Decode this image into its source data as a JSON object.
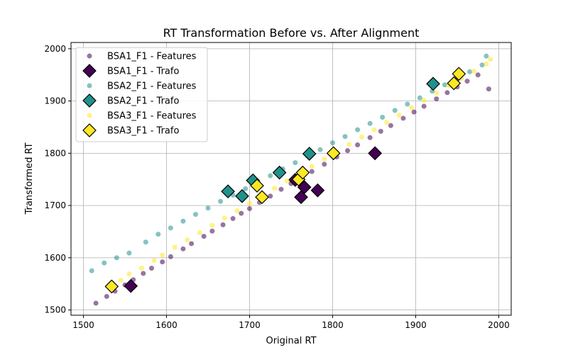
{
  "chart_data": {
    "type": "scatter",
    "title": "RT Transformation Before vs. After Alignment",
    "xlabel": "Original RT",
    "ylabel": "Transformed RT",
    "xlim": [
      1485,
      2015
    ],
    "ylim": [
      1490,
      2012
    ],
    "xticks": [
      1500,
      1600,
      1700,
      1800,
      1900,
      2000
    ],
    "yticks": [
      1500,
      1600,
      1700,
      1800,
      1900,
      2000
    ],
    "grid": true,
    "legend_position": "top-left",
    "colors": {
      "bsa1": "#440154",
      "bsa2": "#21918c",
      "bsa3": "#fde725"
    },
    "series": [
      {
        "key": "bsa1_features",
        "name": "BSA1_F1 - Features",
        "marker": "circle",
        "color": "#440154",
        "x": [
          1515,
          1528,
          1538,
          1550,
          1560,
          1572,
          1582,
          1595,
          1605,
          1620,
          1630,
          1645,
          1655,
          1668,
          1680,
          1690,
          1700,
          1712,
          1725,
          1738,
          1750,
          1762,
          1775,
          1790,
          1805,
          1818,
          1830,
          1845,
          1858,
          1870,
          1885,
          1898,
          1910,
          1925,
          1938,
          1950,
          1962,
          1975,
          1988
        ],
        "y": [
          1513,
          1526,
          1536,
          1548,
          1558,
          1570,
          1580,
          1592,
          1602,
          1617,
          1627,
          1641,
          1651,
          1663,
          1675,
          1685,
          1694,
          1706,
          1718,
          1731,
          1742,
          1753,
          1765,
          1779,
          1793,
          1805,
          1816,
          1830,
          1842,
          1853,
          1867,
          1879,
          1890,
          1904,
          1916,
          1927,
          1938,
          1950,
          1923
        ]
      },
      {
        "key": "bsa1_trafo",
        "name": "BSA1_F1 - Trafo",
        "marker": "diamond",
        "color": "#440154",
        "x": [
          1557,
          1755,
          1762,
          1766,
          1782,
          1851
        ],
        "y": [
          1546,
          1749,
          1716,
          1735,
          1729,
          1800
        ]
      },
      {
        "key": "bsa2_features",
        "name": "BSA2_F1 - Features",
        "marker": "circle",
        "color": "#21918c",
        "x": [
          1510,
          1525,
          1540,
          1555,
          1575,
          1590,
          1605,
          1620,
          1635,
          1650,
          1665,
          1680,
          1695,
          1710,
          1725,
          1740,
          1755,
          1770,
          1785,
          1800,
          1815,
          1830,
          1845,
          1860,
          1875,
          1890,
          1905,
          1920,
          1935,
          1950,
          1965,
          1980,
          1985
        ],
        "y": [
          1575,
          1590,
          1600,
          1609,
          1630,
          1645,
          1657,
          1670,
          1683,
          1695,
          1708,
          1720,
          1732,
          1745,
          1757,
          1770,
          1782,
          1795,
          1807,
          1820,
          1832,
          1845,
          1857,
          1869,
          1882,
          1894,
          1906,
          1919,
          1931,
          1944,
          1956,
          1969,
          1986
        ]
      },
      {
        "key": "bsa2_trafo",
        "name": "BSA2_F1 - Trafo",
        "marker": "diamond",
        "color": "#21918c",
        "x": [
          1674,
          1691,
          1704,
          1736,
          1772,
          1921
        ],
        "y": [
          1727,
          1718,
          1748,
          1763,
          1799,
          1933
        ]
      },
      {
        "key": "bsa3_features",
        "name": "BSA3_F1 - Features",
        "marker": "circle",
        "color": "#fde725",
        "x": [
          1545,
          1555,
          1570,
          1585,
          1595,
          1610,
          1625,
          1640,
          1655,
          1670,
          1685,
          1700,
          1715,
          1730,
          1745,
          1760,
          1775,
          1790,
          1805,
          1820,
          1835,
          1850,
          1865,
          1880,
          1895,
          1910,
          1925,
          1940,
          1955,
          1970,
          1985,
          1990
        ],
        "y": [
          1557,
          1569,
          1580,
          1595,
          1605,
          1620,
          1634,
          1648,
          1662,
          1676,
          1690,
          1704,
          1718,
          1733,
          1747,
          1761,
          1775,
          1789,
          1803,
          1817,
          1831,
          1845,
          1859,
          1873,
          1887,
          1901,
          1915,
          1929,
          1943,
          1957,
          1971,
          1980
        ]
      },
      {
        "key": "bsa3_trafo",
        "name": "BSA3_F1 - Trafo",
        "marker": "diamond",
        "color": "#fde725",
        "x": [
          1534,
          1709,
          1715,
          1759,
          1764,
          1801,
          1946,
          1952
        ],
        "y": [
          1545,
          1738,
          1716,
          1750,
          1763,
          1800,
          1934,
          1952
        ]
      }
    ],
    "legend": [
      {
        "label": "BSA1_F1 - Features",
        "marker": "circle",
        "color": "#440154"
      },
      {
        "label": "BSA1_F1 - Trafo",
        "marker": "diamond",
        "color": "#440154"
      },
      {
        "label": "BSA2_F1 - Features",
        "marker": "circle",
        "color": "#21918c"
      },
      {
        "label": "BSA2_F1 - Trafo",
        "marker": "diamond",
        "color": "#21918c"
      },
      {
        "label": "BSA3_F1 - Features",
        "marker": "circle",
        "color": "#fde725"
      },
      {
        "label": "BSA3_F1 - Trafo",
        "marker": "diamond",
        "color": "#fde725"
      }
    ]
  }
}
